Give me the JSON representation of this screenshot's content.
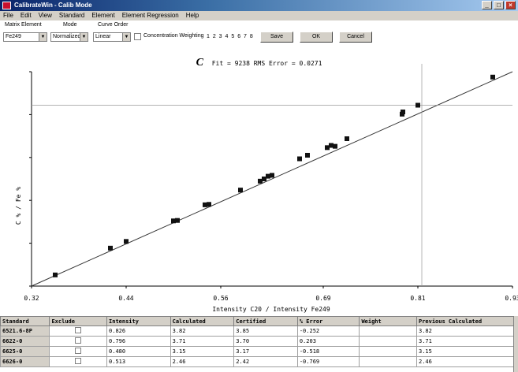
{
  "window": {
    "title": "CalibrateWin - Calib Mode"
  },
  "menu": [
    "File",
    "Edit",
    "View",
    "Standard",
    "Element",
    "Element Regression",
    "Help"
  ],
  "toolbar": {
    "matrix_element_label": "Matrix Element",
    "matrix_element_value": "Fe249",
    "mode_label": "Mode",
    "mode_value": "Normalized",
    "curve_order_label": "Curve Order",
    "curve_order_value": "Linear",
    "weighting_label": "Concentration Weighting",
    "dots": "1 2 3 4 5 6 7 8",
    "save_label": "Save",
    "ok_label": "OK",
    "cancel_label": "Cancel"
  },
  "plot": {
    "element": "C",
    "stats": "Fit = 9238  RMS Error = 0.0271",
    "xlabel": "Intensity C20 / Intensity Fe249"
  },
  "chart_data": {
    "type": "scatter",
    "xlabel": "Intensity C20 / Intensity Fe249",
    "ylabel": "C % / Fe %",
    "xlim": [
      0.32,
      0.93
    ],
    "ylim": [
      0.0,
      4.8
    ],
    "x_ticks": [
      "0.32",
      "0.44",
      "0.56",
      "0.69",
      "0.81",
      "0.93"
    ],
    "fit_line": [
      [
        0.32,
        0.0
      ],
      [
        0.93,
        4.8
      ]
    ],
    "points": [
      [
        0.35,
        0.25
      ],
      [
        0.42,
        0.85
      ],
      [
        0.44,
        1.0
      ],
      [
        0.5,
        1.46
      ],
      [
        0.505,
        1.47
      ],
      [
        0.54,
        1.82
      ],
      [
        0.545,
        1.83
      ],
      [
        0.585,
        2.15
      ],
      [
        0.61,
        2.35
      ],
      [
        0.615,
        2.4
      ],
      [
        0.62,
        2.46
      ],
      [
        0.625,
        2.48
      ],
      [
        0.66,
        2.85
      ],
      [
        0.67,
        2.93
      ],
      [
        0.695,
        3.1
      ],
      [
        0.7,
        3.15
      ],
      [
        0.705,
        3.13
      ],
      [
        0.72,
        3.3
      ],
      [
        0.79,
        3.85
      ],
      [
        0.791,
        3.9
      ],
      [
        0.81,
        4.05
      ],
      [
        0.905,
        4.68
      ]
    ],
    "crosshair": [
      0.815,
      4.05
    ],
    "grid": false
  },
  "table": {
    "columns": [
      "Standard",
      "Exclude",
      "Intensity",
      "Calculated",
      "Certified",
      "% Error",
      "Weight",
      "Previous Calculated"
    ],
    "rows": [
      [
        "6521.6-8P",
        "",
        "0.826",
        "3.82",
        "3.85",
        "-0.252",
        "",
        "3.82"
      ],
      [
        "6622-0",
        "",
        "0.796",
        "3.71",
        "3.70",
        "0.203",
        "",
        "3.71"
      ],
      [
        "6625-0",
        "",
        "0.480",
        "3.15",
        "3.17",
        "-0.518",
        "",
        "3.15"
      ],
      [
        "6626-0",
        "",
        "0.513",
        "2.46",
        "2.42",
        "-0.769",
        "",
        "2.46"
      ]
    ]
  }
}
